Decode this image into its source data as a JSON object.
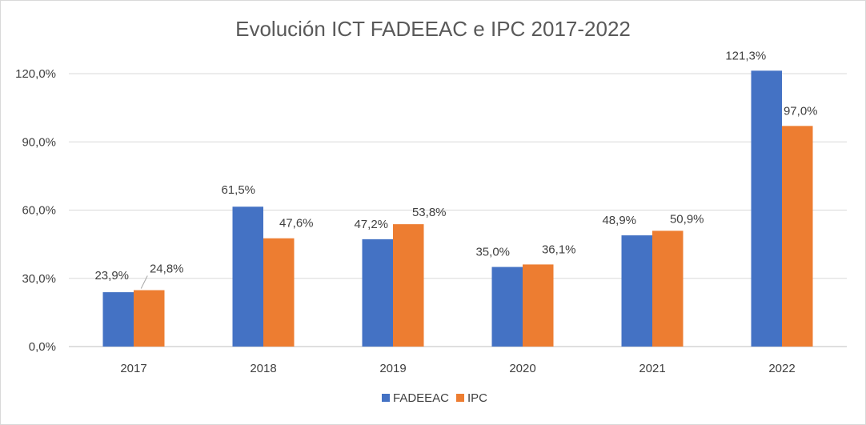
{
  "chart_data": {
    "type": "bar",
    "title": "Evolución ICT FADEEAC e IPC 2017-2022",
    "xlabel": "",
    "ylabel": "",
    "ylim": [
      0,
      130
    ],
    "yticks": [
      0,
      30,
      60,
      90,
      120
    ],
    "ytick_labels": [
      "0,0%",
      "30,0%",
      "60,0%",
      "90,0%",
      "120,0%"
    ],
    "categories": [
      "2017",
      "2018",
      "2019",
      "2020",
      "2021",
      "2022"
    ],
    "series": [
      {
        "name": "FADEEAC",
        "color": "#4472c4",
        "values": [
          23.9,
          61.5,
          47.2,
          35.0,
          48.9,
          121.3
        ],
        "labels": [
          "23,9%",
          "61,5%",
          "47,2%",
          "35,0%",
          "48,9%",
          "121,3%"
        ]
      },
      {
        "name": "IPC",
        "color": "#ed7d31",
        "values": [
          24.8,
          47.6,
          53.8,
          36.1,
          50.9,
          97.0
        ],
        "labels": [
          "24,8%",
          "47,6%",
          "53,8%",
          "36,1%",
          "50,9%",
          "97,0%"
        ]
      }
    ],
    "grid": true,
    "legend_position": "bottom"
  }
}
